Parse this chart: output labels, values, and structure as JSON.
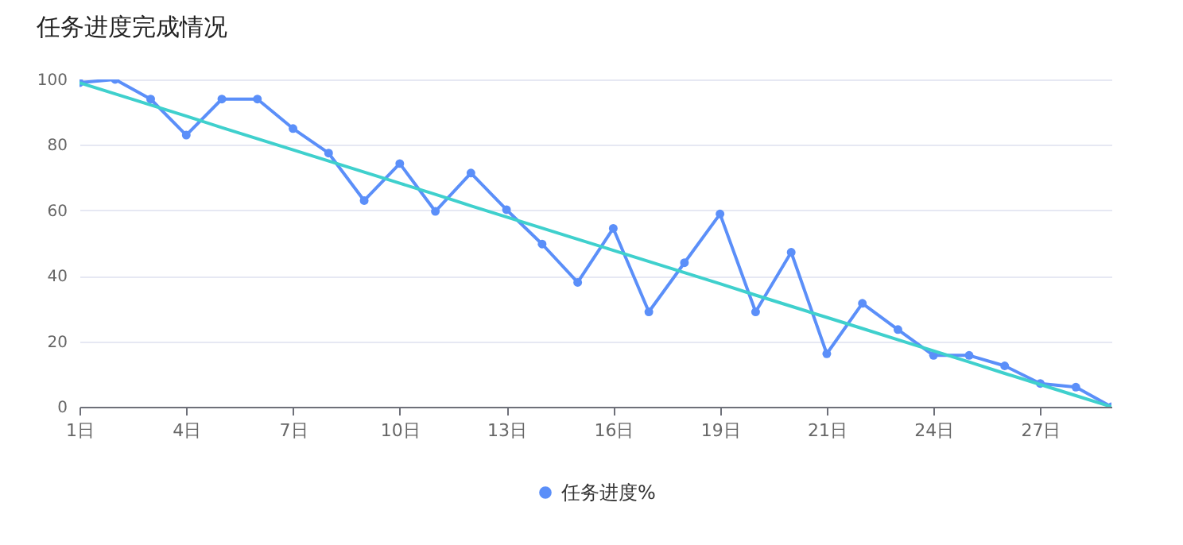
{
  "chart_data": {
    "type": "line",
    "title": "任务进度完成情况",
    "categories": [
      "1日",
      null,
      null,
      "4日",
      null,
      null,
      "7日",
      null,
      null,
      "10日",
      null,
      null,
      "13日",
      null,
      null,
      "16日",
      null,
      null,
      "19日",
      null,
      null,
      "21日",
      null,
      null,
      "24日",
      null,
      null,
      "27日",
      null,
      null
    ],
    "ylim": [
      0,
      100
    ],
    "yticks": [
      0,
      20,
      40,
      60,
      80,
      100
    ],
    "grid": "y",
    "legend": "bottom",
    "marker": "circle",
    "series": [
      {
        "name": "任务进度%",
        "color": "#5b8ff9",
        "values": [
          99,
          100,
          94,
          83,
          94,
          94,
          85,
          77.5,
          63,
          74.3,
          59.7,
          71.4,
          60.2,
          49.7,
          38,
          54.5,
          29,
          44,
          58.9,
          29,
          47.2,
          16.2,
          31.6,
          23.6,
          15.7,
          15.7,
          12.5,
          7.1,
          6,
          0
        ]
      },
      {
        "type": "line",
        "color": "#3fd0cd",
        "marker": "none",
        "values": [
          99,
          95.6,
          92.2,
          88.8,
          85.3,
          81.9,
          78.5,
          75.1,
          71.7,
          68.3,
          64.9,
          61.4,
          58.0,
          54.6,
          51.2,
          47.8,
          44.4,
          41.0,
          37.6,
          34.1,
          30.7,
          27.3,
          23.9,
          20.5,
          17.1,
          13.7,
          10.2,
          6.8,
          3.4,
          0
        ]
      }
    ]
  }
}
